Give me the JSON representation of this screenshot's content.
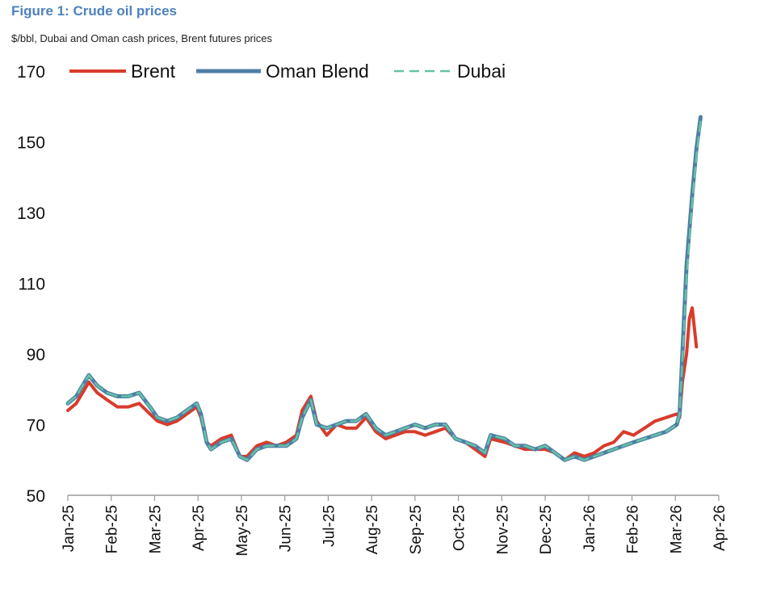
{
  "figure": {
    "title": "Figure 1: Crude oil prices",
    "subtitle": "$/bbl, Dubai and Oman cash prices, Brent futures prices"
  },
  "chart_data": {
    "type": "line",
    "title": "Figure 1: Crude oil prices",
    "subtitle": "$/bbl, Dubai and Oman cash prices, Brent futures prices",
    "xlabel": "",
    "ylabel": "",
    "ylim": [
      50,
      170
    ],
    "yticks": [
      50,
      70,
      90,
      110,
      130,
      150,
      170
    ],
    "xlim": [
      "2025-01-01",
      "2026-04-16"
    ],
    "xticks": [
      "Jan-25",
      "Feb-25",
      "Mar-25",
      "Apr-25",
      "May-25",
      "Jun-25",
      "Jul-25",
      "Aug-25",
      "Sep-25",
      "Oct-25",
      "Nov-25",
      "Dec-25",
      "Jan-26",
      "Feb-26",
      "Mar-26",
      "Apr-26"
    ],
    "grid": false,
    "legend": "top",
    "series": [
      {
        "name": "Brent",
        "color": "#d93b2b",
        "style": "solid",
        "points": [
          [
            "2025-01-01",
            74
          ],
          [
            "2025-01-07",
            76
          ],
          [
            "2025-01-13",
            80
          ],
          [
            "2025-01-16",
            82
          ],
          [
            "2025-01-22",
            79
          ],
          [
            "2025-01-29",
            77
          ],
          [
            "2025-02-05",
            75
          ],
          [
            "2025-02-12",
            75
          ],
          [
            "2025-02-19",
            76
          ],
          [
            "2025-02-26",
            73
          ],
          [
            "2025-03-03",
            71
          ],
          [
            "2025-03-10",
            70
          ],
          [
            "2025-03-17",
            71
          ],
          [
            "2025-03-24",
            73
          ],
          [
            "2025-03-31",
            75
          ],
          [
            "2025-04-03",
            72
          ],
          [
            "2025-04-07",
            65
          ],
          [
            "2025-04-10",
            64
          ],
          [
            "2025-04-17",
            66
          ],
          [
            "2025-04-24",
            67
          ],
          [
            "2025-04-30",
            61
          ],
          [
            "2025-05-05",
            61
          ],
          [
            "2025-05-12",
            64
          ],
          [
            "2025-05-19",
            65
          ],
          [
            "2025-05-26",
            64
          ],
          [
            "2025-06-02",
            65
          ],
          [
            "2025-06-09",
            67
          ],
          [
            "2025-06-13",
            74
          ],
          [
            "2025-06-19",
            78
          ],
          [
            "2025-06-23",
            71
          ],
          [
            "2025-06-30",
            67
          ],
          [
            "2025-07-07",
            70
          ],
          [
            "2025-07-14",
            69
          ],
          [
            "2025-07-21",
            69
          ],
          [
            "2025-07-28",
            72
          ],
          [
            "2025-08-04",
            68
          ],
          [
            "2025-08-11",
            66
          ],
          [
            "2025-08-18",
            67
          ],
          [
            "2025-08-25",
            68
          ],
          [
            "2025-09-01",
            68
          ],
          [
            "2025-09-08",
            67
          ],
          [
            "2025-09-15",
            68
          ],
          [
            "2025-09-22",
            69
          ],
          [
            "2025-09-29",
            66
          ],
          [
            "2025-10-06",
            65
          ],
          [
            "2025-10-13",
            63
          ],
          [
            "2025-10-20",
            61
          ],
          [
            "2025-10-24",
            66
          ],
          [
            "2025-11-03",
            65
          ],
          [
            "2025-11-10",
            64
          ],
          [
            "2025-11-17",
            63
          ],
          [
            "2025-11-24",
            63
          ],
          [
            "2025-12-01",
            63
          ],
          [
            "2025-12-08",
            62
          ],
          [
            "2025-12-15",
            60
          ],
          [
            "2025-12-22",
            62
          ],
          [
            "2025-12-29",
            61
          ],
          [
            "2026-01-05",
            62
          ],
          [
            "2026-01-12",
            64
          ],
          [
            "2026-01-19",
            65
          ],
          [
            "2026-01-26",
            68
          ],
          [
            "2026-02-02",
            67
          ],
          [
            "2026-02-09",
            69
          ],
          [
            "2026-02-16",
            71
          ],
          [
            "2026-02-23",
            72
          ],
          [
            "2026-03-02",
            73
          ],
          [
            "2026-03-04",
            72
          ],
          [
            "2026-03-06",
            82
          ],
          [
            "2026-03-09",
            90
          ],
          [
            "2026-03-11",
            100
          ],
          [
            "2026-03-13",
            103
          ],
          [
            "2026-03-16",
            92
          ]
        ]
      },
      {
        "name": "Oman Blend",
        "color": "#4e7fa6",
        "style": "solid",
        "points": [
          [
            "2025-01-01",
            76
          ],
          [
            "2025-01-07",
            78
          ],
          [
            "2025-01-13",
            82
          ],
          [
            "2025-01-16",
            84
          ],
          [
            "2025-01-22",
            81
          ],
          [
            "2025-01-29",
            79
          ],
          [
            "2025-02-05",
            78
          ],
          [
            "2025-02-12",
            78
          ],
          [
            "2025-02-19",
            79
          ],
          [
            "2025-02-26",
            75
          ],
          [
            "2025-03-03",
            72
          ],
          [
            "2025-03-10",
            71
          ],
          [
            "2025-03-17",
            72
          ],
          [
            "2025-03-24",
            74
          ],
          [
            "2025-03-31",
            76
          ],
          [
            "2025-04-03",
            73
          ],
          [
            "2025-04-07",
            65
          ],
          [
            "2025-04-10",
            63
          ],
          [
            "2025-04-17",
            65
          ],
          [
            "2025-04-24",
            66
          ],
          [
            "2025-04-30",
            61
          ],
          [
            "2025-05-05",
            60
          ],
          [
            "2025-05-12",
            63
          ],
          [
            "2025-05-19",
            64
          ],
          [
            "2025-05-26",
            64
          ],
          [
            "2025-06-02",
            64
          ],
          [
            "2025-06-09",
            66
          ],
          [
            "2025-06-13",
            72
          ],
          [
            "2025-06-19",
            77
          ],
          [
            "2025-06-23",
            70
          ],
          [
            "2025-06-30",
            69
          ],
          [
            "2025-07-07",
            70
          ],
          [
            "2025-07-14",
            71
          ],
          [
            "2025-07-21",
            71
          ],
          [
            "2025-07-28",
            73
          ],
          [
            "2025-08-04",
            69
          ],
          [
            "2025-08-11",
            67
          ],
          [
            "2025-08-18",
            68
          ],
          [
            "2025-08-25",
            69
          ],
          [
            "2025-09-01",
            70
          ],
          [
            "2025-09-08",
            69
          ],
          [
            "2025-09-15",
            70
          ],
          [
            "2025-09-22",
            70
          ],
          [
            "2025-09-29",
            66
          ],
          [
            "2025-10-06",
            65
          ],
          [
            "2025-10-13",
            64
          ],
          [
            "2025-10-20",
            62
          ],
          [
            "2025-10-24",
            67
          ],
          [
            "2025-11-03",
            66
          ],
          [
            "2025-11-10",
            64
          ],
          [
            "2025-11-17",
            64
          ],
          [
            "2025-11-24",
            63
          ],
          [
            "2025-12-01",
            64
          ],
          [
            "2025-12-08",
            62
          ],
          [
            "2025-12-15",
            60
          ],
          [
            "2025-12-22",
            61
          ],
          [
            "2025-12-29",
            60
          ],
          [
            "2026-01-05",
            61
          ],
          [
            "2026-01-12",
            62
          ],
          [
            "2026-01-19",
            63
          ],
          [
            "2026-01-26",
            64
          ],
          [
            "2026-02-02",
            65
          ],
          [
            "2026-02-09",
            66
          ],
          [
            "2026-02-16",
            67
          ],
          [
            "2026-02-23",
            68
          ],
          [
            "2026-03-02",
            70
          ],
          [
            "2026-03-04",
            73
          ],
          [
            "2026-03-06",
            90
          ],
          [
            "2026-03-09",
            115
          ],
          [
            "2026-03-11",
            125
          ],
          [
            "2026-03-13",
            135
          ],
          [
            "2026-03-16",
            148
          ],
          [
            "2026-03-19",
            157
          ]
        ]
      },
      {
        "name": "Dubai",
        "color": "#66c2a5",
        "style": "dashed",
        "points": [
          [
            "2025-01-01",
            76
          ],
          [
            "2025-01-07",
            78
          ],
          [
            "2025-01-13",
            82
          ],
          [
            "2025-01-16",
            84
          ],
          [
            "2025-01-22",
            81
          ],
          [
            "2025-01-29",
            79
          ],
          [
            "2025-02-05",
            78
          ],
          [
            "2025-02-12",
            78
          ],
          [
            "2025-02-19",
            79
          ],
          [
            "2025-02-26",
            75
          ],
          [
            "2025-03-03",
            72
          ],
          [
            "2025-03-10",
            71
          ],
          [
            "2025-03-17",
            72
          ],
          [
            "2025-03-24",
            74
          ],
          [
            "2025-03-31",
            76
          ],
          [
            "2025-04-03",
            73
          ],
          [
            "2025-04-07",
            65
          ],
          [
            "2025-04-10",
            63
          ],
          [
            "2025-04-17",
            65
          ],
          [
            "2025-04-24",
            66
          ],
          [
            "2025-04-30",
            61
          ],
          [
            "2025-05-05",
            60
          ],
          [
            "2025-05-12",
            63
          ],
          [
            "2025-05-19",
            64
          ],
          [
            "2025-05-26",
            64
          ],
          [
            "2025-06-02",
            64
          ],
          [
            "2025-06-09",
            66
          ],
          [
            "2025-06-13",
            72
          ],
          [
            "2025-06-19",
            77
          ],
          [
            "2025-06-23",
            70
          ],
          [
            "2025-06-30",
            69
          ],
          [
            "2025-07-07",
            70
          ],
          [
            "2025-07-14",
            71
          ],
          [
            "2025-07-21",
            71
          ],
          [
            "2025-07-28",
            73
          ],
          [
            "2025-08-04",
            69
          ],
          [
            "2025-08-11",
            67
          ],
          [
            "2025-08-18",
            68
          ],
          [
            "2025-08-25",
            69
          ],
          [
            "2025-09-01",
            70
          ],
          [
            "2025-09-08",
            69
          ],
          [
            "2025-09-15",
            70
          ],
          [
            "2025-09-22",
            70
          ],
          [
            "2025-09-29",
            66
          ],
          [
            "2025-10-06",
            65
          ],
          [
            "2025-10-13",
            64
          ],
          [
            "2025-10-20",
            62
          ],
          [
            "2025-10-24",
            67
          ],
          [
            "2025-11-03",
            66
          ],
          [
            "2025-11-10",
            64
          ],
          [
            "2025-11-17",
            64
          ],
          [
            "2025-11-24",
            63
          ],
          [
            "2025-12-01",
            64
          ],
          [
            "2025-12-08",
            62
          ],
          [
            "2025-12-15",
            60
          ],
          [
            "2025-12-22",
            61
          ],
          [
            "2025-12-29",
            60
          ],
          [
            "2026-01-05",
            61
          ],
          [
            "2026-01-12",
            62
          ],
          [
            "2026-01-19",
            63
          ],
          [
            "2026-01-26",
            64
          ],
          [
            "2026-02-02",
            65
          ],
          [
            "2026-02-09",
            66
          ],
          [
            "2026-02-16",
            67
          ],
          [
            "2026-02-23",
            68
          ],
          [
            "2026-03-02",
            70
          ],
          [
            "2026-03-04",
            73
          ],
          [
            "2026-03-06",
            88
          ],
          [
            "2026-03-09",
            112
          ],
          [
            "2026-03-11",
            122
          ],
          [
            "2026-03-13",
            133
          ],
          [
            "2026-03-16",
            146
          ],
          [
            "2026-03-19",
            156
          ]
        ]
      }
    ]
  }
}
